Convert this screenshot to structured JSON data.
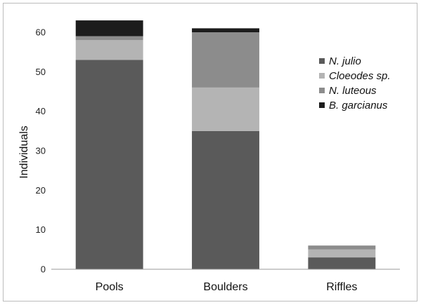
{
  "chart_data": {
    "type": "bar",
    "stacked": true,
    "categories": [
      "Pools",
      "Boulders",
      "Riffles"
    ],
    "series": [
      {
        "name": "N. julio",
        "values": [
          53,
          35,
          3
        ],
        "color": "#5a5a5a"
      },
      {
        "name": "Cloeodes sp.",
        "values": [
          5,
          11,
          2
        ],
        "color": "#b4b4b4"
      },
      {
        "name": "N. luteous",
        "values": [
          1,
          14,
          1
        ],
        "color": "#8c8c8c"
      },
      {
        "name": "B. garcianus",
        "values": [
          4,
          1,
          0
        ],
        "color": "#1c1c1c"
      }
    ],
    "title": "",
    "xlabel": "",
    "ylabel": "Individuals",
    "ylim": [
      0,
      60
    ],
    "yticks": [
      "0",
      "10",
      "20",
      "30",
      "40",
      "50",
      "60"
    ],
    "grid": false,
    "legend_position": "right"
  }
}
